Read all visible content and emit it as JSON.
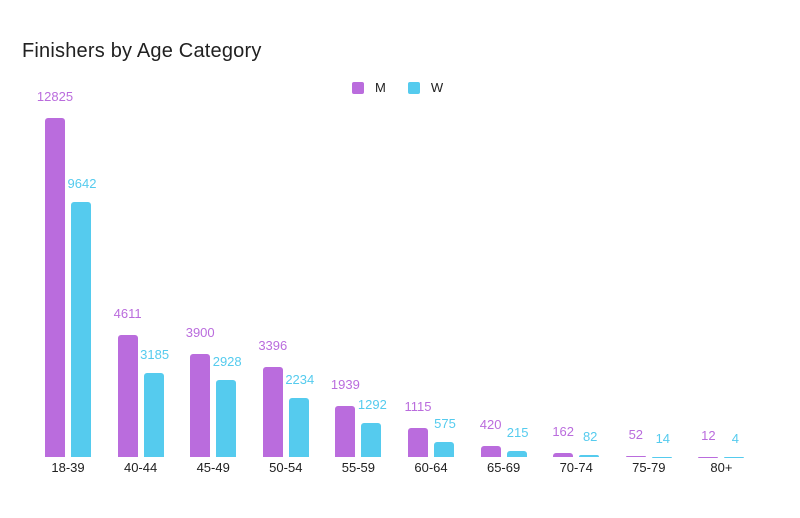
{
  "title": "Finishers by Age Category",
  "legend": {
    "position": "top",
    "items": [
      {
        "label": "M",
        "color": "#ba6cdd"
      },
      {
        "label": "W",
        "color": "#55cbee"
      }
    ]
  },
  "chart_data": {
    "type": "bar",
    "title": "Finishers by Age Category",
    "categories": [
      "18-39",
      "40-44",
      "45-49",
      "50-54",
      "55-59",
      "60-64",
      "65-69",
      "70-74",
      "75-79",
      "80+"
    ],
    "series": [
      {
        "name": "M",
        "color": "#ba6cdd",
        "values": [
          12825,
          4611,
          3900,
          3396,
          1939,
          1115,
          420,
          162,
          52,
          12
        ]
      },
      {
        "name": "W",
        "color": "#55cbee",
        "values": [
          9642,
          3185,
          2928,
          2234,
          1292,
          575,
          215,
          82,
          14,
          4
        ]
      }
    ],
    "xlabel": "",
    "ylabel": "",
    "ylim": [
      0,
      12825
    ],
    "grid": false,
    "legend_position": "top",
    "annotations": "value displayed above each bar in series color"
  }
}
